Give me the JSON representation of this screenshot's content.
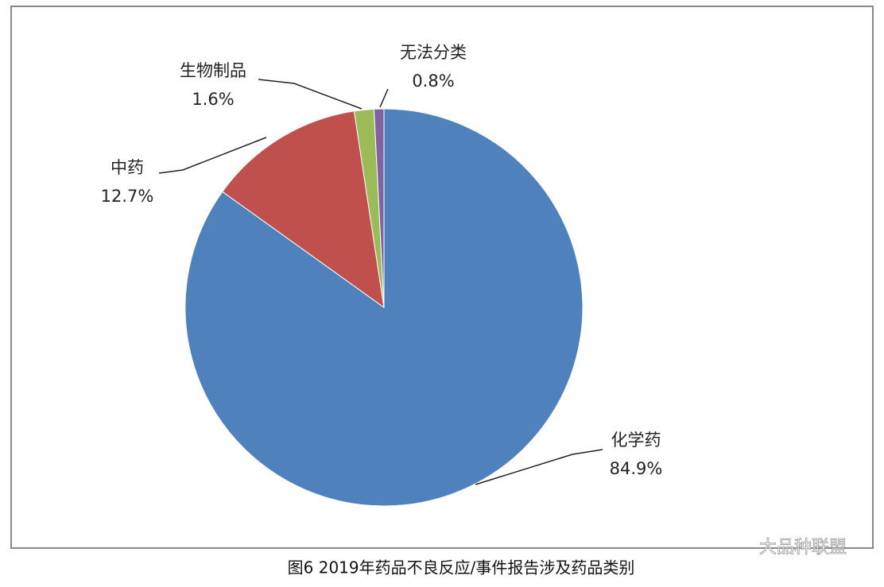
{
  "chart_data": {
    "type": "pie",
    "title": "图6 2019年药品不良反应/事件报告涉及药品类别",
    "categories": [
      "化学药",
      "中药",
      "生物制品",
      "无法分类"
    ],
    "values": [
      84.9,
      12.7,
      1.6,
      0.8
    ],
    "value_labels": [
      "84.9%",
      "12.7%",
      "1.6%",
      "0.8%"
    ],
    "colors": [
      "#4f81bd",
      "#c0504d",
      "#9bbb59",
      "#8064a2"
    ],
    "watermark": "大品种联盟"
  }
}
